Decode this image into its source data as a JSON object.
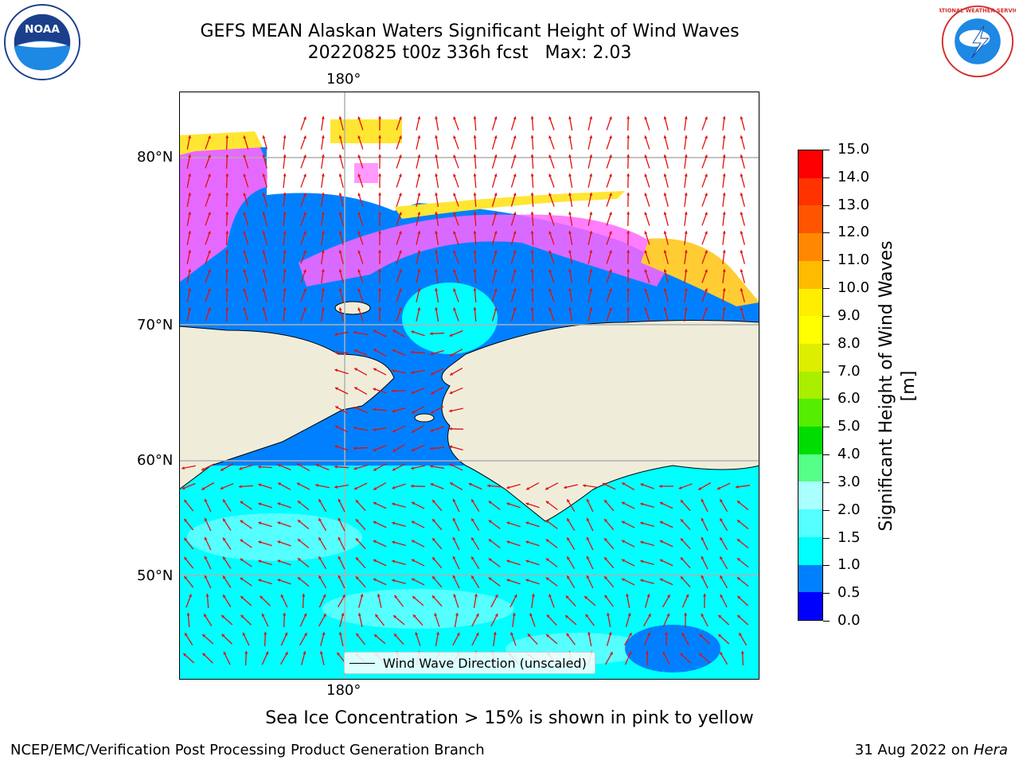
{
  "header": {
    "title_line1": "GEFS MEAN Alaskan Waters Significant Height of Wind Waves",
    "title_line2": "20220825 t00z 336h fcst   Max: 2.03"
  },
  "logos": {
    "left": "noaa-logo",
    "left_text": "NOAA",
    "right": "nws-logo",
    "right_text": "NATIONAL WEATHER SERVICE"
  },
  "map": {
    "lon_labels": [
      "180°",
      "180°"
    ],
    "lat_labels": [
      "80°N",
      "70°N",
      "60°N",
      "50°N"
    ],
    "legend": "Wind Wave Direction (unscaled)",
    "colors": {
      "land": "#efedda",
      "ocean_low": "#0080ff",
      "ocean_mid": "#00ffff",
      "ocean_high": "#aaffff",
      "ice_pink": "#ff66ff",
      "ice_yellow": "#ffe633",
      "arrow": "#e01010",
      "grid": "#b0b0b0"
    }
  },
  "colorbar": {
    "title": "Significant Height of Wind Waves [m]",
    "ticks": [
      "0.0",
      "0.5",
      "1.0",
      "1.5",
      "2.0",
      "3.0",
      "4.0",
      "5.0",
      "6.0",
      "7.0",
      "8.0",
      "9.0",
      "10.0",
      "11.0",
      "12.0",
      "13.0",
      "14.0",
      "15.0"
    ],
    "colors": [
      "#0000ff",
      "#0080ff",
      "#00ffff",
      "#55ffff",
      "#aaffff",
      "#55ff88",
      "#00dd00",
      "#55ee00",
      "#aaee00",
      "#ddee00",
      "#ffff00",
      "#ffee00",
      "#ffbb00",
      "#ff8800",
      "#ff5500",
      "#ff3300",
      "#ff0000"
    ]
  },
  "footnote": "Sea Ice Concentration > 15% is shown in pink to yellow",
  "footer": {
    "left": "NCEP/EMC/Verification Post Processing Product Generation Branch",
    "right_date": "31 Aug 2022 on",
    "right_host": "Hera"
  }
}
